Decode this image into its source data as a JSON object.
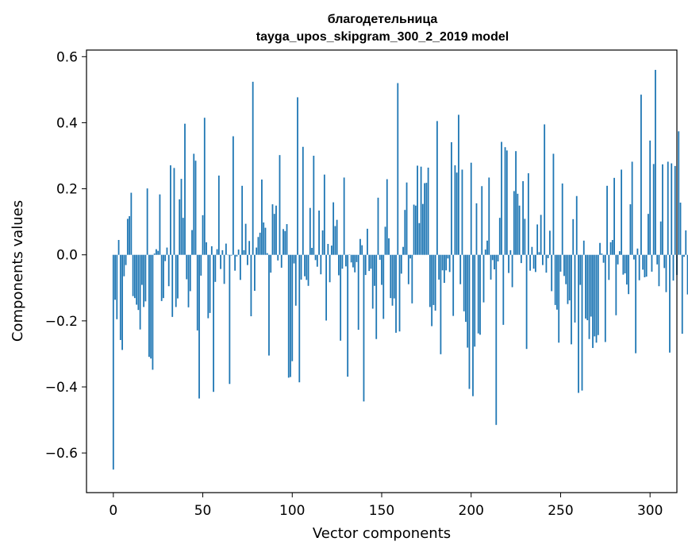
{
  "chart_data": {
    "type": "bar",
    "title": "благодетельница",
    "subtitle": "tayga_upos_skipgram_300_2_2019 model",
    "xlabel": "Vector components",
    "ylabel": "Components values",
    "xlim": [
      -15,
      315
    ],
    "ylim": [
      -0.72,
      0.62
    ],
    "xticks": [
      0,
      50,
      100,
      150,
      200,
      250,
      300
    ],
    "yticks": [
      -0.6,
      -0.4,
      -0.2,
      0.0,
      0.2,
      0.4,
      0.6
    ],
    "ytick_labels": [
      "−0.6",
      "−0.4",
      "−0.2",
      "0.0",
      "0.2",
      "0.4",
      "0.6"
    ],
    "bar_color": "#1f77b4",
    "grid": false,
    "legend": "none",
    "x_start": 0,
    "values": [
      -0.65,
      -0.136,
      -0.195,
      0.045,
      -0.258,
      -0.288,
      -0.065,
      -0.031,
      0.109,
      0.117,
      0.188,
      -0.125,
      -0.131,
      -0.151,
      -0.167,
      -0.226,
      -0.091,
      -0.158,
      -0.141,
      0.201,
      -0.309,
      -0.314,
      -0.348,
      0.004,
      0.017,
      0.012,
      0.183,
      -0.14,
      -0.131,
      -0.019,
      0.022,
      -0.095,
      0.271,
      -0.188,
      0.263,
      -0.158,
      -0.132,
      0.168,
      0.23,
      0.112,
      0.397,
      -0.074,
      -0.159,
      -0.11,
      0.075,
      0.306,
      0.285,
      -0.229,
      -0.435,
      -0.063,
      0.12,
      0.415,
      0.038,
      -0.192,
      -0.176,
      0.026,
      -0.415,
      -0.082,
      0.017,
      0.24,
      -0.043,
      0.014,
      -0.088,
      0.034,
      -0.001,
      -0.391,
      -0.002,
      0.359,
      -0.048,
      -0.005,
      0.016,
      -0.076,
      0.209,
      0.014,
      0.094,
      -0.031,
      0.042,
      -0.186,
      0.524,
      -0.109,
      0.022,
      0.054,
      0.067,
      0.228,
      0.098,
      0.082,
      0.005,
      -0.305,
      -0.054,
      0.153,
      0.124,
      0.149,
      -0.017,
      0.302,
      -0.039,
      0.078,
      0.072,
      0.093,
      -0.372,
      -0.37,
      -0.322,
      -0.026,
      -0.154,
      0.477,
      -0.386,
      -0.075,
      0.327,
      -0.065,
      -0.076,
      -0.094,
      0.142,
      0.021,
      0.3,
      -0.016,
      -0.036,
      0.134,
      -0.059,
      0.074,
      0.243,
      -0.199,
      0.033,
      -0.083,
      0.028,
      0.159,
      0.087,
      0.106,
      -0.062,
      -0.26,
      -0.042,
      0.234,
      -0.035,
      -0.369,
      0.001,
      -0.023,
      -0.038,
      -0.053,
      -0.022,
      -0.227,
      0.048,
      0.029,
      -0.444,
      -0.061,
      0.079,
      -0.049,
      -0.042,
      -0.163,
      -0.094,
      -0.255,
      0.173,
      -0.015,
      -0.091,
      -0.194,
      0.085,
      0.229,
      0.05,
      -0.131,
      -0.154,
      -0.132,
      -0.236,
      0.52,
      -0.232,
      -0.057,
      0.024,
      0.136,
      0.219,
      -0.089,
      -0.011,
      -0.147,
      0.152,
      0.149,
      0.27,
      0.096,
      0.267,
      0.154,
      0.217,
      0.218,
      0.264,
      -0.158,
      -0.216,
      -0.152,
      -0.169,
      0.405,
      -0.075,
      -0.301,
      -0.047,
      -0.085,
      -0.047,
      -0.011,
      -0.052,
      0.341,
      -0.185,
      0.271,
      0.249,
      0.424,
      -0.089,
      0.258,
      -0.171,
      -0.203,
      -0.281,
      -0.406,
      0.279,
      -0.428,
      -0.278,
      0.156,
      -0.238,
      -0.242,
      0.208,
      -0.144,
      0.016,
      0.043,
      0.234,
      -0.075,
      -0.016,
      -0.044,
      -0.515,
      -0.02,
      0.112,
      0.342,
      -0.212,
      0.326,
      0.316,
      -0.055,
      0.014,
      -0.098,
      0.193,
      0.314,
      0.185,
      0.149,
      -0.025,
      0.223,
      0.109,
      -0.285,
      0.247,
      -0.048,
      0.024,
      -0.042,
      -0.052,
      0.092,
      0.008,
      0.121,
      -0.031,
      0.395,
      -0.054,
      -0.01,
      0.073,
      -0.11,
      0.306,
      -0.152,
      -0.166,
      -0.266,
      -0.051,
      0.216,
      -0.064,
      -0.089,
      -0.149,
      -0.138,
      -0.271,
      0.108,
      -0.205,
      0.178,
      -0.418,
      -0.091,
      -0.411,
      0.043,
      -0.193,
      -0.198,
      -0.255,
      -0.187,
      -0.282,
      -0.247,
      -0.266,
      -0.243,
      0.036,
      0.004,
      -0.024,
      -0.264,
      0.209,
      -0.076,
      0.038,
      0.045,
      0.233,
      -0.183,
      -0.029,
      0.011,
      0.258,
      -0.06,
      -0.056,
      -0.09,
      -0.119,
      0.153,
      0.282,
      -0.014,
      -0.298,
      0.019,
      -0.077,
      0.485,
      -0.045,
      -0.068,
      -0.066,
      0.124,
      0.346,
      -0.051,
      0.275,
      0.56,
      -0.029,
      -0.095,
      0.101,
      0.274,
      -0.04,
      -0.113,
      0.282,
      -0.296,
      0.277,
      -0.078,
      0.269,
      -0.061,
      0.374,
      0.158,
      -0.239,
      -0.006,
      0.074,
      -0.12
    ]
  }
}
